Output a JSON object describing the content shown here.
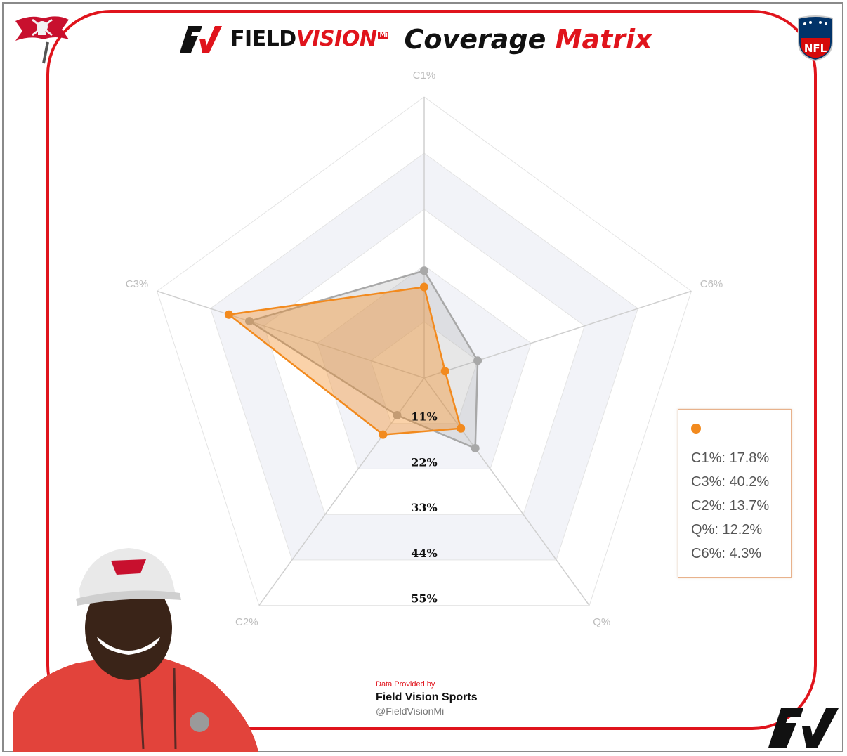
{
  "header": {
    "brand_field": "FIELD",
    "brand_vision": "VISION",
    "brand_mi": "Mi",
    "title_main": "Coverage",
    "title_accent": "Matrix"
  },
  "nfl_logo_text": "NFL",
  "colors": {
    "frame_red": "#e0141c",
    "series_orange": "#f28a1e",
    "series_gray": "#a8a8a8"
  },
  "chart_data": {
    "type": "radar",
    "axes": [
      "C1%",
      "C6%",
      "Q%",
      "C2%",
      "C3%"
    ],
    "rings": [
      "11%",
      "22%",
      "33%",
      "44%",
      "55%"
    ],
    "rmax": 55,
    "series": [
      {
        "values": [
          17.8,
          4.3,
          12.2,
          13.7,
          40.2
        ]
      },
      {
        "values": [
          21,
          11,
          17,
          9,
          36
        ]
      }
    ]
  },
  "legend": {
    "lines": [
      "C1%: 17.8%",
      "C3%: 40.2%",
      "C2%: 13.7%",
      "Q%: 12.2%",
      "C6%: 4.3%"
    ]
  },
  "credits": {
    "provided_by": "Data Provided by",
    "name": "Field Vision Sports",
    "handle": "@FieldVisionMi"
  }
}
